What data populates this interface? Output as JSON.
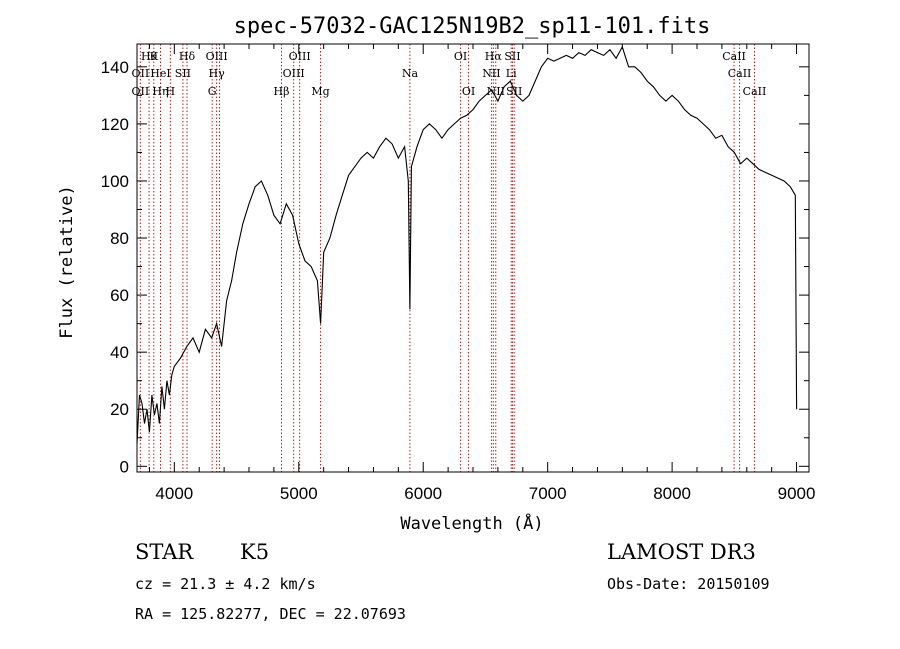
{
  "chart_data": {
    "type": "line",
    "title": "spec-57032-GAC125N19B2_sp11-101.fits",
    "xlabel": "Wavelength (Å)",
    "ylabel": "Flux (relative)",
    "xlim": [
      3700,
      9100
    ],
    "ylim": [
      -2,
      148
    ],
    "xticks": [
      4000,
      5000,
      6000,
      7000,
      8000,
      9000
    ],
    "xticks_minor": [
      3800,
      4200,
      4400,
      4600,
      4800,
      5200,
      5400,
      5600,
      5800,
      6200,
      6400,
      6600,
      6800,
      7200,
      7400,
      7600,
      7800,
      8200,
      8400,
      8600,
      8800
    ],
    "yticks": [
      0,
      20,
      40,
      60,
      80,
      100,
      120,
      140
    ],
    "yticks_minor": [
      10,
      30,
      50,
      70,
      90,
      110,
      130
    ],
    "grid": false,
    "series_color": "#000000",
    "line_color": "#b22222",
    "series": [
      {
        "x": [
          3700,
          3720,
          3740,
          3760,
          3780,
          3800,
          3820,
          3840,
          3860,
          3880,
          3900,
          3920,
          3940,
          3960,
          3980,
          4000,
          4050,
          4100,
          4150,
          4200,
          4250,
          4300,
          4340,
          4380,
          4420,
          4460,
          4500,
          4550,
          4600,
          4650,
          4700,
          4750,
          4800,
          4850,
          4900,
          4950,
          5000,
          5050,
          5100,
          5150,
          5175,
          5200,
          5250,
          5300,
          5350,
          5400,
          5450,
          5500,
          5550,
          5600,
          5650,
          5700,
          5750,
          5800,
          5850,
          5880,
          5893,
          5905,
          5950,
          6000,
          6050,
          6100,
          6150,
          6200,
          6250,
          6300,
          6350,
          6400,
          6450,
          6500,
          6550,
          6600,
          6650,
          6700,
          6750,
          6800,
          6850,
          6900,
          6950,
          7000,
          7050,
          7100,
          7150,
          7200,
          7250,
          7300,
          7350,
          7400,
          7450,
          7500,
          7550,
          7600,
          7650,
          7700,
          7750,
          7800,
          7850,
          7900,
          7950,
          8000,
          8050,
          8100,
          8150,
          8200,
          8250,
          8300,
          8350,
          8400,
          8450,
          8500,
          8550,
          8600,
          8650,
          8700,
          8750,
          8800,
          8850,
          8900,
          8950,
          8990,
          9000
        ],
        "y": [
          8,
          25,
          22,
          15,
          20,
          12,
          25,
          18,
          22,
          15,
          28,
          20,
          30,
          25,
          32,
          35,
          38,
          42,
          45,
          40,
          48,
          45,
          50,
          42,
          58,
          65,
          75,
          85,
          92,
          98,
          100,
          95,
          88,
          85,
          92,
          88,
          78,
          72,
          70,
          65,
          50,
          75,
          80,
          88,
          95,
          102,
          105,
          108,
          110,
          108,
          112,
          115,
          113,
          108,
          112,
          100,
          55,
          105,
          112,
          118,
          120,
          118,
          115,
          118,
          120,
          122,
          123,
          125,
          128,
          130,
          132,
          128,
          133,
          135,
          130,
          128,
          130,
          135,
          140,
          143,
          142,
          143,
          144,
          143,
          145,
          144,
          146,
          145,
          144,
          146,
          143,
          147,
          140,
          140,
          138,
          135,
          133,
          130,
          128,
          130,
          128,
          125,
          123,
          122,
          120,
          118,
          115,
          116,
          112,
          110,
          106,
          108,
          106,
          104,
          103,
          102,
          101,
          100,
          98,
          95,
          20
        ]
      }
    ],
    "line_labels": [
      {
        "x": 3797,
        "text": "Hθ",
        "row": 1
      },
      {
        "x": 3835,
        "text": "K",
        "row": 1
      },
      {
        "x": 4102,
        "text": "Hδ",
        "row": 1
      },
      {
        "x": 4340,
        "text": "OIII",
        "row": 1
      },
      {
        "x": 5007,
        "text": "OIII",
        "row": 1
      },
      {
        "x": 6300,
        "text": "OI",
        "row": 1
      },
      {
        "x": 6563,
        "text": "Hα",
        "row": 1
      },
      {
        "x": 6717,
        "text": "SII",
        "row": 1
      },
      {
        "x": 8498,
        "text": "CaII",
        "row": 1
      },
      {
        "x": 3727,
        "text": "OII",
        "row": 2
      },
      {
        "x": 3889,
        "text": "HeI",
        "row": 2
      },
      {
        "x": 4069,
        "text": "SII",
        "row": 2
      },
      {
        "x": 4340,
        "text": "Hγ",
        "row": 2
      },
      {
        "x": 4959,
        "text": "OIII",
        "row": 2
      },
      {
        "x": 5893,
        "text": "Na",
        "row": 2
      },
      {
        "x": 6548,
        "text": "NII",
        "row": 2
      },
      {
        "x": 6707,
        "text": "Li",
        "row": 2
      },
      {
        "x": 8542,
        "text": "CaII",
        "row": 2
      },
      {
        "x": 3727,
        "text": "OII",
        "row": 3
      },
      {
        "x": 3889,
        "text": "Hη",
        "row": 3
      },
      {
        "x": 3968,
        "text": "H",
        "row": 3
      },
      {
        "x": 4304,
        "text": "G",
        "row": 3
      },
      {
        "x": 4861,
        "text": "Hβ",
        "row": 3
      },
      {
        "x": 5175,
        "text": "Mg",
        "row": 3
      },
      {
        "x": 6364,
        "text": "OI",
        "row": 3
      },
      {
        "x": 6583,
        "text": "NII",
        "row": 3
      },
      {
        "x": 6731,
        "text": "SII",
        "row": 3
      },
      {
        "x": 8662,
        "text": "CaII",
        "row": 3
      }
    ],
    "line_markers": [
      3727,
      3797,
      3835,
      3889,
      3968,
      4069,
      4102,
      4304,
      4340,
      4363,
      4861,
      4959,
      5007,
      5175,
      5893,
      6300,
      6364,
      6548,
      6563,
      6583,
      6707,
      6717,
      6731,
      8498,
      8542,
      8662
    ]
  },
  "info": {
    "class_label": "STAR",
    "subclass_label": "K5",
    "survey": "LAMOST DR3",
    "redshift": "cz = 21.3 ± 4.2 km/s",
    "obs_date": "Obs-Date: 20150109",
    "coords": "RA = 125.82277, DEC =  22.07693"
  }
}
